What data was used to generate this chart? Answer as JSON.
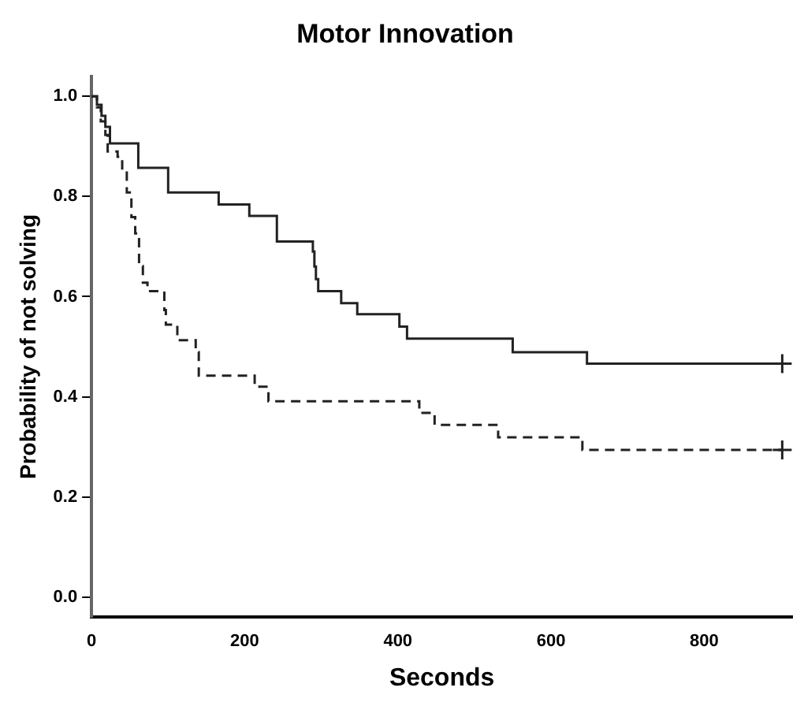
{
  "chart_data": {
    "type": "step",
    "title": "Motor Innovation",
    "xlabel": "Seconds",
    "ylabel": "Probability of not solving",
    "xlim": [
      0,
      915
    ],
    "ylim": [
      -0.04,
      1.04
    ],
    "xticks": [
      0,
      200,
      400,
      600,
      800
    ],
    "yticks": [
      {
        "value": 0,
        "label": "0.0"
      },
      0.2,
      0.4,
      0.6,
      0.8,
      {
        "value": 1,
        "label": "1.0"
      }
    ],
    "grid": false,
    "legend": false,
    "series": [
      {
        "color": "#222222",
        "line_style": "solid",
        "marker": "none",
        "x": [
          0,
          7,
          13,
          18,
          24,
          61,
          100,
          166,
          206,
          242,
          289,
          291,
          293,
          296,
          326,
          347,
          402,
          412,
          550,
          647,
          902
        ],
        "values": [
          1.0,
          0.983,
          0.961,
          0.939,
          0.906,
          0.857,
          0.808,
          0.784,
          0.761,
          0.71,
          0.69,
          0.66,
          0.635,
          0.611,
          0.587,
          0.565,
          0.54,
          0.516,
          0.489,
          0.466,
          0.466
        ]
      },
      {
        "color": "#222222",
        "line_style": "dashed",
        "marker": "none",
        "x": [
          0,
          7,
          12,
          18,
          21,
          34,
          40,
          46,
          52,
          57,
          62,
          67,
          73,
          95,
          97,
          112,
          136,
          140,
          213,
          231,
          428,
          448,
          531,
          641,
          902
        ],
        "values": [
          1.0,
          0.978,
          0.95,
          0.923,
          0.89,
          0.879,
          0.852,
          0.808,
          0.759,
          0.726,
          0.661,
          0.628,
          0.611,
          0.573,
          0.544,
          0.513,
          0.489,
          0.442,
          0.42,
          0.391,
          0.368,
          0.344,
          0.319,
          0.294,
          0.294
        ]
      },
      {
        "type": "scatter",
        "color": "#222222",
        "marker": "cross",
        "x": [
          902,
          902
        ],
        "values": [
          0.466,
          0.294
        ]
      }
    ]
  }
}
